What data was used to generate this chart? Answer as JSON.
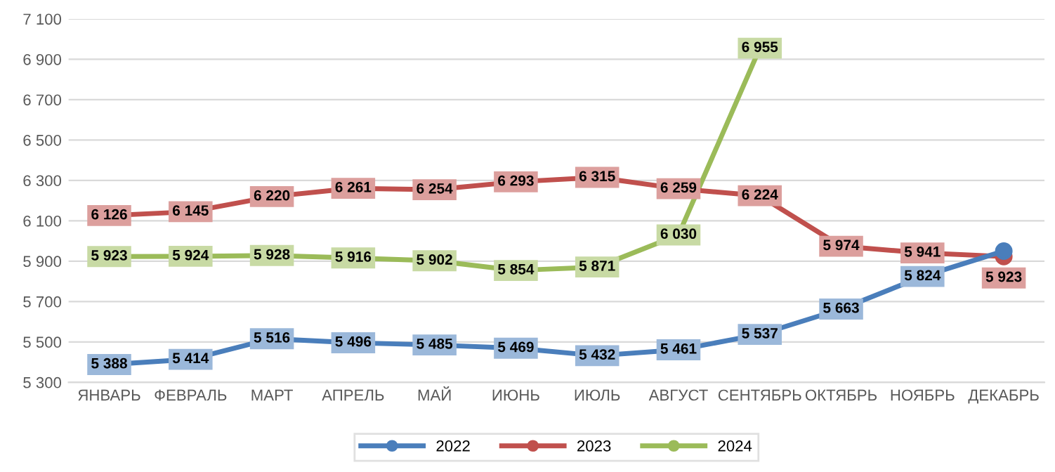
{
  "chart_data": {
    "type": "line",
    "categories": [
      "ЯНВАРЬ",
      "ФЕВРАЛЬ",
      "МАРТ",
      "АПРЕЛЬ",
      "МАЙ",
      "ИЮНЬ",
      "ИЮЛЬ",
      "АВГУСТ",
      "СЕНТЯБРЬ",
      "ОКТЯБРЬ",
      "НОЯБРЬ",
      "ДЕКАБРЬ"
    ],
    "series": [
      {
        "name": "2022",
        "color": "#4a7ebb",
        "values": [
          5388,
          5414,
          5516,
          5496,
          5485,
          5469,
          5432,
          5461,
          5537,
          5663,
          5824,
          5950
        ],
        "value_labels": [
          "5 388",
          "5 414",
          "5 516",
          "5 496",
          "5 485",
          "5 469",
          "5 432",
          "5 461",
          "5 537",
          "5 663",
          "5 824",
          null
        ]
      },
      {
        "name": "2023",
        "color": "#c0504d",
        "values": [
          6126,
          6145,
          6220,
          6261,
          6254,
          6293,
          6315,
          6259,
          6224,
          5974,
          5941,
          5923
        ],
        "value_labels": [
          "6 126",
          "6 145",
          "6 220",
          "6 261",
          "6 254",
          "6 293",
          "6 315",
          "6 259",
          "6 224",
          "5 974",
          "5 941",
          "5 923"
        ]
      },
      {
        "name": "2024",
        "color": "#9bbb59",
        "values": [
          5923,
          5924,
          5928,
          5916,
          5902,
          5854,
          5871,
          6030,
          6955,
          null,
          null,
          null
        ],
        "value_labels": [
          "5 923",
          "5 924",
          "5 928",
          "5 916",
          "5 902",
          "5 854",
          "5 871",
          "6 030",
          "6 955",
          null,
          null,
          null
        ]
      }
    ],
    "ylim": [
      5300,
      7100
    ],
    "yticks": [
      {
        "value": 5300,
        "label": "5 300"
      },
      {
        "value": 5500,
        "label": "5 500"
      },
      {
        "value": 5700,
        "label": "5 700"
      },
      {
        "value": 5900,
        "label": "5 900"
      },
      {
        "value": 6100,
        "label": "6 100"
      },
      {
        "value": 6300,
        "label": "6 300"
      },
      {
        "value": 6500,
        "label": "6 500"
      },
      {
        "value": 6700,
        "label": "6 700"
      },
      {
        "value": 6900,
        "label": "6 900"
      },
      {
        "value": 7100,
        "label": "7 100"
      }
    ],
    "grid": "y",
    "legend": "bottom",
    "marker": "circle",
    "line_style": "solid"
  }
}
